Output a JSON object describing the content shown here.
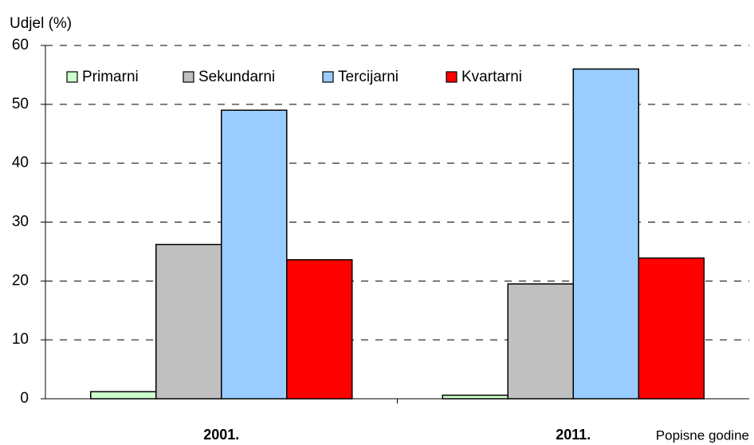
{
  "chart_data": {
    "type": "bar",
    "y_label": "Udjel (%)",
    "x_label": "Popisne godine",
    "categories": [
      "2001.",
      "2011."
    ],
    "series": [
      {
        "name": "Primarni",
        "color": "#ccffcc",
        "values": [
          1.2,
          0.6
        ]
      },
      {
        "name": "Sekundarni",
        "color": "#c0c0c0",
        "values": [
          26.2,
          19.5
        ]
      },
      {
        "name": "Tercijarni",
        "color": "#99ccff",
        "values": [
          49,
          56
        ]
      },
      {
        "name": "Kvartarni",
        "color": "#ff0000",
        "values": [
          23.6,
          23.9
        ]
      }
    ],
    "ylim": [
      0,
      60
    ],
    "yticks": [
      0,
      10,
      20,
      30,
      40,
      50,
      60
    ],
    "grid": true,
    "legend": "top-left"
  }
}
